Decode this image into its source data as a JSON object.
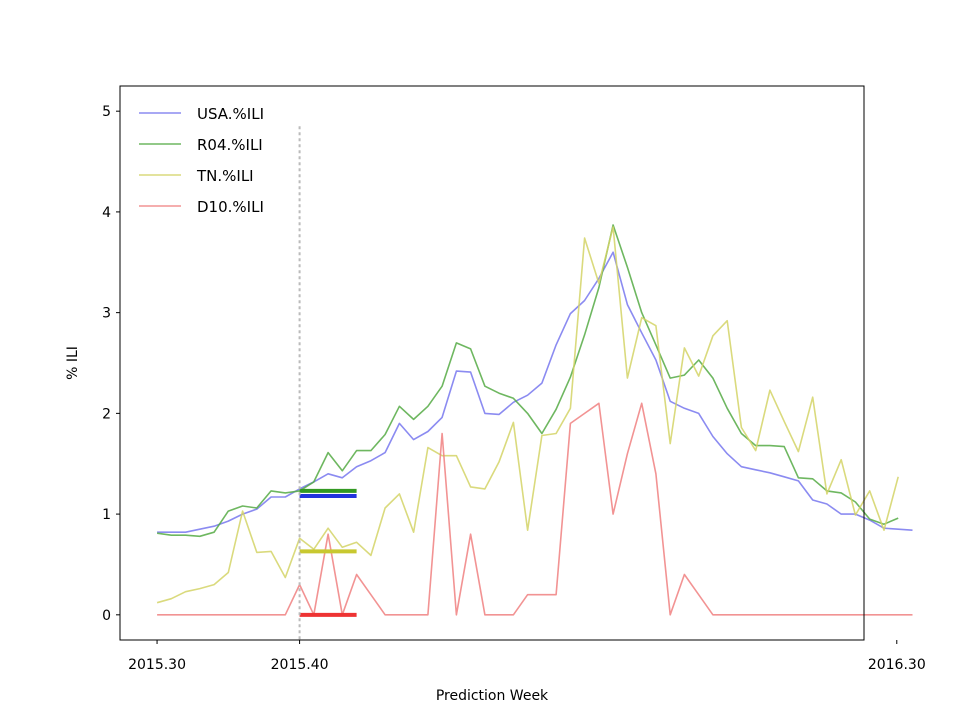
{
  "chart_data": {
    "type": "line",
    "xlabel": "Prediction Week",
    "ylabel": "% ILI",
    "ylim": [
      -0.25,
      5.25
    ],
    "yticks": [
      0,
      1,
      2,
      3,
      4,
      5
    ],
    "xlim": [
      -2.6,
      49.6
    ],
    "xticks": [
      {
        "value": 0,
        "label": "2015.30"
      },
      {
        "value": 10,
        "label": "2015.40"
      },
      {
        "value": 52,
        "label": "2016.30"
      }
    ],
    "grid": false,
    "legend_position": "top-left",
    "prediction_marker": {
      "x": 10,
      "ymax": 4.85,
      "color": "#bbbbbb"
    },
    "series": [
      {
        "name": "USA.%ILI",
        "color": "#7777ee",
        "values": [
          0.82,
          0.82,
          0.82,
          0.85,
          0.88,
          0.93,
          1.0,
          1.05,
          1.17,
          1.17,
          1.25,
          1.32,
          1.4,
          1.36,
          1.47,
          1.53,
          1.61,
          1.9,
          1.74,
          1.82,
          1.96,
          2.42,
          2.41,
          2.0,
          1.99,
          2.11,
          2.18,
          2.3,
          2.68,
          2.99,
          3.12,
          3.34,
          3.6,
          3.08,
          2.8,
          2.53,
          2.12,
          2.05,
          2.0,
          1.77,
          1.6,
          1.47,
          1.44,
          1.41,
          1.37,
          1.33,
          1.14,
          1.1,
          1.0,
          1.0,
          0.94,
          0.86,
          0.85,
          0.84
        ]
      },
      {
        "name": "R04.%ILI",
        "color": "#55aa44",
        "values": [
          0.81,
          0.79,
          0.79,
          0.78,
          0.82,
          1.03,
          1.08,
          1.06,
          1.23,
          1.21,
          1.23,
          1.32,
          1.61,
          1.43,
          1.63,
          1.63,
          1.79,
          2.07,
          1.94,
          2.07,
          2.27,
          2.7,
          2.64,
          2.27,
          2.2,
          2.15,
          2.0,
          1.8,
          2.04,
          2.36,
          2.78,
          3.25,
          3.87,
          3.45,
          3.0,
          2.68,
          2.35,
          2.38,
          2.53,
          2.35,
          2.05,
          1.8,
          1.68,
          1.68,
          1.67,
          1.36,
          1.35,
          1.23,
          1.21,
          1.12,
          0.95,
          0.9,
          0.96
        ]
      },
      {
        "name": "TN.%ILI",
        "color": "#d4d466",
        "values": [
          0.12,
          0.16,
          0.23,
          0.26,
          0.3,
          0.42,
          1.03,
          0.62,
          0.63,
          0.37,
          0.76,
          0.65,
          0.86,
          0.67,
          0.72,
          0.59,
          1.06,
          1.2,
          0.82,
          1.66,
          1.58,
          1.58,
          1.27,
          1.25,
          1.52,
          1.91,
          0.84,
          1.78,
          1.8,
          2.05,
          3.74,
          3.29,
          3.85,
          2.35,
          2.95,
          2.87,
          1.7,
          2.65,
          2.37,
          2.77,
          2.92,
          1.86,
          1.63,
          2.23,
          1.92,
          1.62,
          2.16,
          1.2,
          1.54,
          0.99,
          1.23,
          0.84,
          1.37
        ]
      },
      {
        "name": "D10.%ILI",
        "color": "#f08080",
        "values": [
          0,
          0,
          0,
          0,
          0,
          0,
          0,
          0,
          0,
          0,
          0.3,
          0,
          0.8,
          0,
          0.4,
          0.2,
          0,
          0,
          0,
          0,
          1.8,
          0,
          0.8,
          0,
          0,
          0,
          0.2,
          0.2,
          0.2,
          1.9,
          2.0,
          2.1,
          1.0,
          1.6,
          2.1,
          1.4,
          0,
          0.4,
          0.2,
          0,
          0,
          0,
          0,
          0,
          0,
          0,
          0,
          0,
          0,
          0,
          0,
          0,
          0,
          0
        ]
      }
    ],
    "forecasts": [
      {
        "series": "R04.%ILI",
        "color": "#339922",
        "x0": 10,
        "x1": 14,
        "value": 1.23
      },
      {
        "series": "USA.%ILI",
        "color": "#2233dd",
        "x0": 10,
        "x1": 14,
        "value": 1.18
      },
      {
        "series": "TN.%ILI",
        "color": "#c8c830",
        "x0": 10,
        "x1": 14,
        "value": 0.63
      },
      {
        "series": "D10.%ILI",
        "color": "#ee3333",
        "x0": 10,
        "x1": 14,
        "value": 0.0
      }
    ]
  }
}
